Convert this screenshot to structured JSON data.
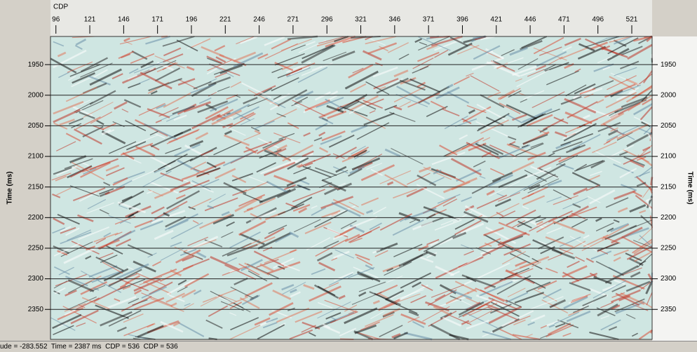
{
  "chart_data": {
    "type": "seismic",
    "x_label": "CDP",
    "y_label": "Time (ms)",
    "xlim": [
      92,
      536
    ],
    "xticks": [
      96,
      121,
      146,
      171,
      196,
      221,
      246,
      271,
      296,
      321,
      346,
      371,
      396,
      421,
      446,
      471,
      496,
      521
    ],
    "ylim": [
      1904,
      2399
    ],
    "yticks": [
      1950,
      2000,
      2050,
      2100,
      2150,
      2200,
      2250,
      2300,
      2350
    ],
    "grid": true
  },
  "status_bar": "ude = -283.552  Time = 2387 ms  CDP = 536  CDP = 536"
}
